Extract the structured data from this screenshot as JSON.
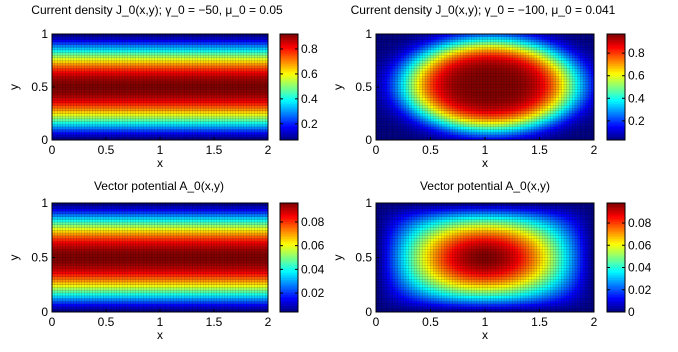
{
  "chart_data": [
    {
      "type": "heatmap",
      "title": "Current density J_0(x,y); γ_0 = −50, μ_0 = 0.05",
      "xlabel": "x",
      "ylabel": "y",
      "xlim": [
        0,
        2
      ],
      "ylim": [
        0,
        1
      ],
      "xticks": [
        "0",
        "0.5",
        "1",
        "1.5",
        "2"
      ],
      "yticks": [
        "0",
        "0.5",
        "1"
      ],
      "colorbar_ticks": [
        "0.2",
        "0.4",
        "0.6",
        "0.8"
      ],
      "colorbar_tick_values": [
        0.2,
        0.4,
        0.6,
        0.8
      ],
      "clim": [
        0.07,
        0.92
      ],
      "field": "band",
      "field_max": 0.92,
      "field_min": 0.07,
      "colormap": "jet"
    },
    {
      "type": "heatmap",
      "title": "Current density J_0(x,y); γ_0 = −100, μ_0 = 0.041",
      "xlabel": "x",
      "ylabel": "y",
      "xlim": [
        0,
        2
      ],
      "ylim": [
        0,
        1
      ],
      "xticks": [
        "0",
        "0.5",
        "1",
        "1.5",
        "2"
      ],
      "yticks": [
        "0",
        "0.5",
        "1"
      ],
      "colorbar_ticks": [
        "0.2",
        "0.4",
        "0.6",
        "0.8"
      ],
      "colorbar_tick_values": [
        0.2,
        0.4,
        0.6,
        0.8
      ],
      "clim": [
        0.03,
        0.97
      ],
      "field": "ellipse",
      "field_max": 0.97,
      "field_min": 0.03,
      "colormap": "jet"
    },
    {
      "type": "heatmap",
      "title": "Vector potential A_0(x,y)",
      "xlabel": "x",
      "ylabel": "y",
      "xlim": [
        0,
        2
      ],
      "ylim": [
        0,
        1
      ],
      "xticks": [
        "0",
        "0.5",
        "1",
        "1.5",
        "2"
      ],
      "yticks": [
        "0",
        "0.5",
        "1"
      ],
      "colorbar_ticks": [
        "0.02",
        "0.04",
        "0.06",
        "0.08"
      ],
      "colorbar_tick_values": [
        0.02,
        0.04,
        0.06,
        0.08
      ],
      "clim": [
        0.004,
        0.096
      ],
      "field": "band",
      "field_max": 0.096,
      "field_min": 0.004,
      "colormap": "jet"
    },
    {
      "type": "heatmap",
      "title": "Vector potential A_0(x,y)",
      "xlabel": "x",
      "ylabel": "y",
      "xlim": [
        0,
        2
      ],
      "ylim": [
        0,
        1
      ],
      "xticks": [
        "0",
        "0.5",
        "1",
        "1.5",
        "2"
      ],
      "yticks": [
        "0",
        "0.5",
        "1"
      ],
      "colorbar_ticks": [
        "0",
        "0.02",
        "0.04",
        "0.06",
        "0.08"
      ],
      "colorbar_tick_values": [
        0,
        0.02,
        0.04,
        0.06,
        0.08
      ],
      "clim": [
        0,
        0.098
      ],
      "field": "bump",
      "field_max": 0.098,
      "field_min": 0,
      "colormap": "jet"
    }
  ]
}
